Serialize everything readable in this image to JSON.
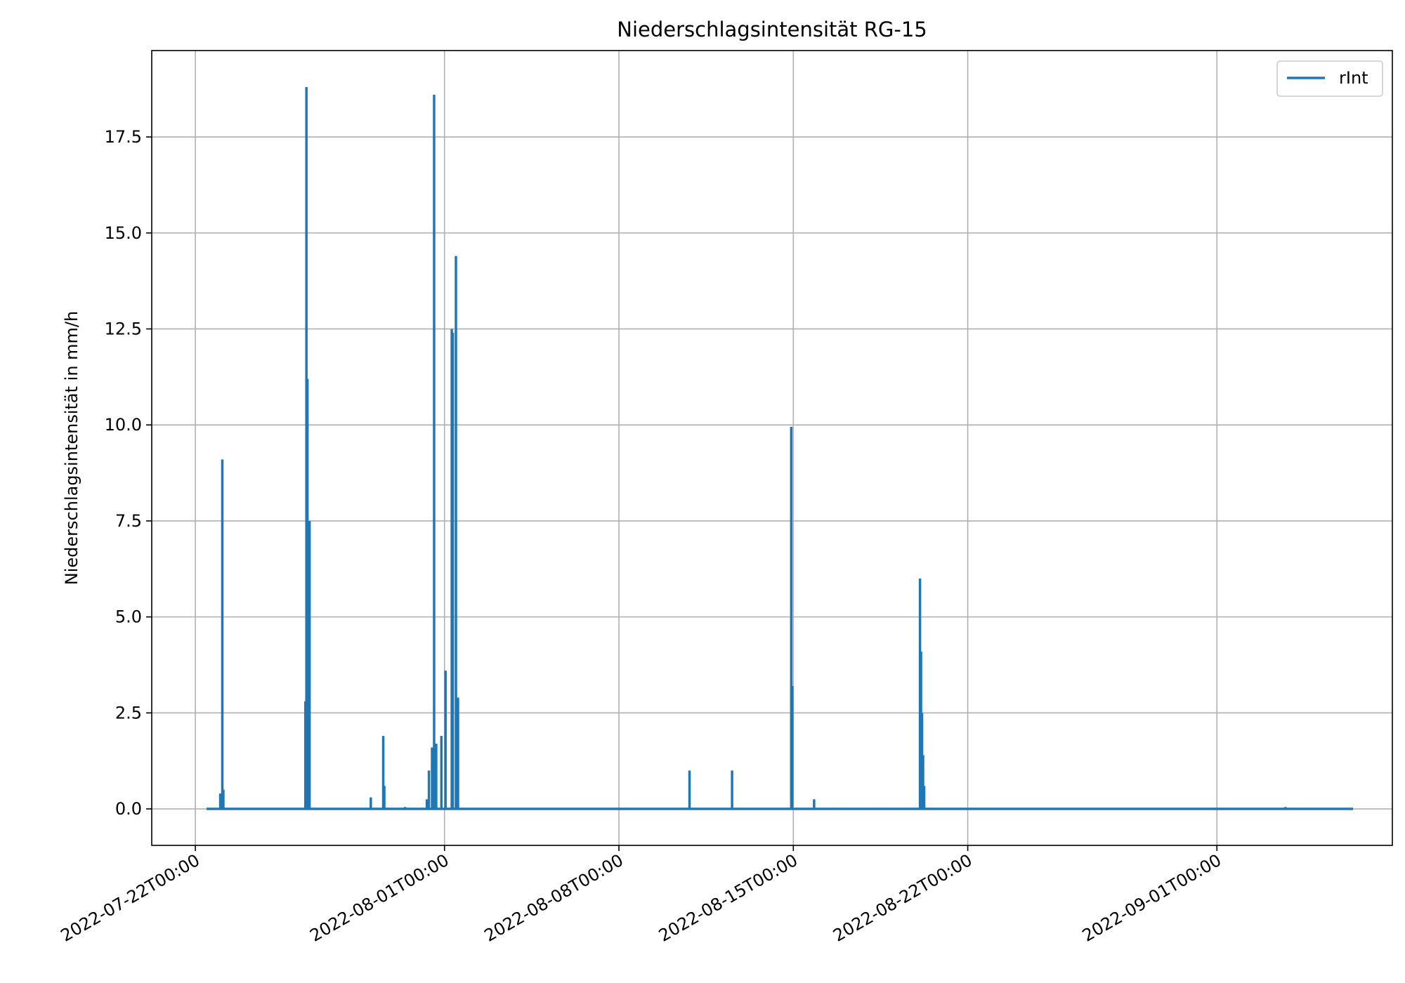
{
  "chart_data": {
    "type": "line",
    "title": "Niederschlagsintensität RG-15",
    "xlabel": "",
    "ylabel": "Niederschlagsintensität in mm/h",
    "x_tick_labels": [
      "2022-07-22T00:00",
      "2022-08-01T00:00",
      "2022-08-08T00:00",
      "2022-08-15T00:00",
      "2022-08-22T00:00",
      "2022-09-01T00:00"
    ],
    "y_tick_labels": [
      "0.0",
      "2.5",
      "5.0",
      "7.5",
      "10.0",
      "12.5",
      "15.0",
      "17.5"
    ],
    "xlim": [
      "2022-07-20T06:00",
      "2022-09-08T01:00"
    ],
    "ylim": [
      -0.95,
      19.75
    ],
    "grid": true,
    "legend_position": "top-right",
    "series": [
      {
        "name": "rInt",
        "color": "#1f77b4",
        "x_start": "2022-07-22T12:00",
        "x_end": "2022-09-06T10:00",
        "baseline": 0,
        "spikes": [
          {
            "x": "2022-07-23T00:00",
            "y": 0.4
          },
          {
            "x": "2022-07-23T02:00",
            "y": 9.1
          },
          {
            "x": "2022-07-23T03:00",
            "y": 0.5
          },
          {
            "x": "2022-07-26T10:00",
            "y": 2.8
          },
          {
            "x": "2022-07-26T11:00",
            "y": 18.8
          },
          {
            "x": "2022-07-26T12:00",
            "y": 11.2
          },
          {
            "x": "2022-07-26T14:00",
            "y": 7.5
          },
          {
            "x": "2022-07-29T01:00",
            "y": 0.3
          },
          {
            "x": "2022-07-29T13:00",
            "y": 1.9
          },
          {
            "x": "2022-07-29T14:00",
            "y": 0.6
          },
          {
            "x": "2022-07-30T10:00",
            "y": 0.05
          },
          {
            "x": "2022-07-31T07:00",
            "y": 0.25
          },
          {
            "x": "2022-07-31T09:00",
            "y": 1.0
          },
          {
            "x": "2022-07-31T12:00",
            "y": 1.6
          },
          {
            "x": "2022-07-31T14:00",
            "y": 18.6
          },
          {
            "x": "2022-07-31T16:00",
            "y": 1.7
          },
          {
            "x": "2022-07-31T21:00",
            "y": 1.9
          },
          {
            "x": "2022-08-01T01:00",
            "y": 3.6
          },
          {
            "x": "2022-08-01T07:00",
            "y": 12.5
          },
          {
            "x": "2022-08-01T08:00",
            "y": 12.4
          },
          {
            "x": "2022-08-01T11:00",
            "y": 14.4
          },
          {
            "x": "2022-08-01T13:00",
            "y": 2.9
          },
          {
            "x": "2022-08-10T20:00",
            "y": 1.0
          },
          {
            "x": "2022-08-12T13:00",
            "y": 1.0
          },
          {
            "x": "2022-08-14T22:00",
            "y": 9.95
          },
          {
            "x": "2022-08-14T23:00",
            "y": 3.2
          },
          {
            "x": "2022-08-15T20:00",
            "y": 0.25
          },
          {
            "x": "2022-08-16T14:00",
            "y": 0.03
          },
          {
            "x": "2022-08-18T10:00",
            "y": 0.03
          },
          {
            "x": "2022-08-20T02:00",
            "y": 6.0
          },
          {
            "x": "2022-08-20T03:00",
            "y": 4.1
          },
          {
            "x": "2022-08-20T04:00",
            "y": 2.5
          },
          {
            "x": "2022-08-20T05:00",
            "y": 1.4
          },
          {
            "x": "2022-08-20T06:00",
            "y": 0.6
          },
          {
            "x": "2022-09-03T18:00",
            "y": 0.05
          }
        ]
      }
    ]
  }
}
